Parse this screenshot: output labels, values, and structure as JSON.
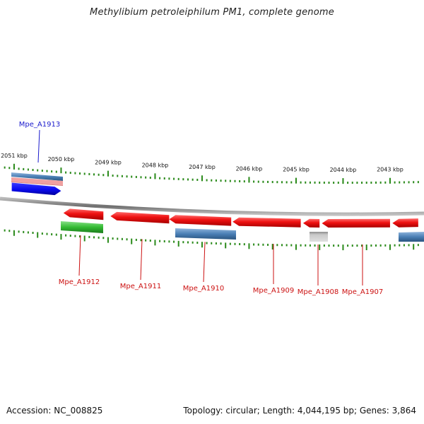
{
  "title": "Methylibium petroleiphilum PM1, complete genome",
  "footer": {
    "accession": "Accession: NC_008825",
    "summary": "Topology: circular; Length: 4,044,195 bp; Genes: 3,864"
  },
  "colors": {
    "forward_cds": "#0a0af0",
    "reverse_cds": "#ee1111",
    "backbone": "#8a8a8a",
    "tick": "#2a8a1a",
    "forward_label": "#1a1acc",
    "reverse_label": "#cc1111",
    "green_feature": "#33bb33",
    "steel_feature": "#4a7fb5",
    "grey_feature": "#bdbdbd",
    "pink_feature": "#f0a0a0"
  },
  "axis": {
    "unit": "kbp",
    "ticks": [
      {
        "pos": 2051,
        "label": "2051 kbp"
      },
      {
        "pos": 2050,
        "label": "2050 kbp"
      },
      {
        "pos": 2049,
        "label": "2049 kbp"
      },
      {
        "pos": 2048,
        "label": "2048 kbp"
      },
      {
        "pos": 2047,
        "label": "2047 kbp"
      },
      {
        "pos": 2046,
        "label": "2046 kbp"
      },
      {
        "pos": 2045,
        "label": "2045 kbp"
      },
      {
        "pos": 2044,
        "label": "2044 kbp"
      },
      {
        "pos": 2043,
        "label": "2043 kbp"
      }
    ]
  },
  "genes": [
    {
      "id": "Mpe_A1913",
      "strand": "+",
      "start": 2051.05,
      "end": 2050.0
    },
    {
      "id": "Mpe_A1912",
      "strand": "-",
      "start": 2049.95,
      "end": 2049.1
    },
    {
      "id": "Mpe_A1911",
      "strand": "-",
      "start": 2048.95,
      "end": 2047.7
    },
    {
      "id": "Mpe_A1910",
      "strand": "-",
      "start": 2047.7,
      "end": 2046.38
    },
    {
      "id": "Mpe_A1909",
      "strand": "-",
      "start": 2046.35,
      "end": 2044.9
    },
    {
      "id": "Mpe_A1908",
      "strand": "-",
      "start": 2044.85,
      "end": 2044.5
    },
    {
      "id": "Mpe_A1907",
      "strand": "-",
      "start": 2044.45,
      "end": 2043.0
    },
    {
      "id": "",
      "strand": "-",
      "start": 2042.95,
      "end": 2042.4
    }
  ],
  "labels": [
    {
      "text": "Mpe_A1913",
      "gene": "Mpe_A1913",
      "strand": "+"
    },
    {
      "text": "Mpe_A1912",
      "gene": "Mpe_A1912",
      "strand": "-"
    },
    {
      "text": "Mpe_A1911",
      "gene": "Mpe_A1911",
      "strand": "-"
    },
    {
      "text": "Mpe_A1910",
      "gene": "Mpe_A1910",
      "strand": "-"
    },
    {
      "text": "Mpe_A1909",
      "gene": "Mpe_A1909",
      "strand": "-"
    },
    {
      "text": "Mpe_A1908",
      "gene": "Mpe_A1908",
      "strand": "-"
    },
    {
      "text": "Mpe_A1907",
      "gene": "Mpe_A1907",
      "strand": "-"
    }
  ]
}
